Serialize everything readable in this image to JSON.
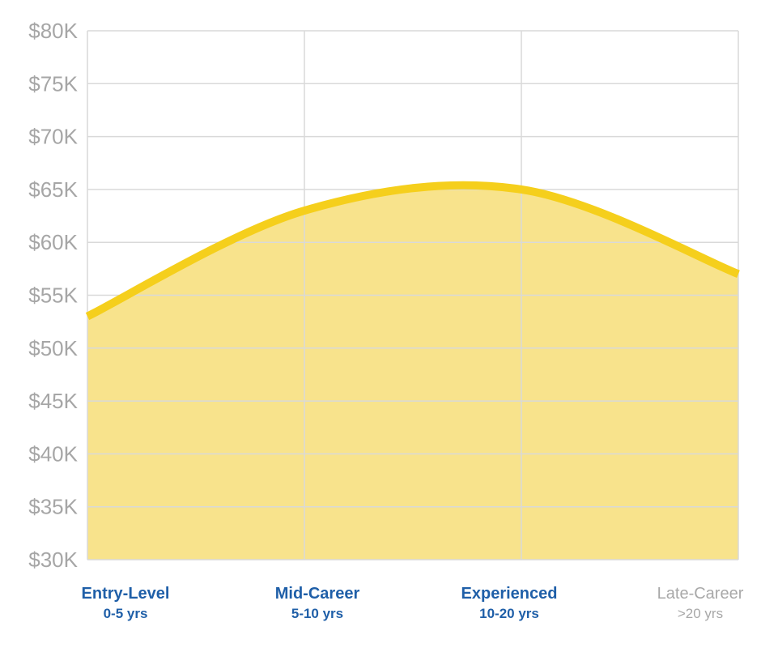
{
  "chart_data": {
    "type": "area",
    "categories": [
      {
        "label": "Entry-Level",
        "sublabel": "0-5 yrs"
      },
      {
        "label": "Mid-Career",
        "sublabel": "5-10 yrs"
      },
      {
        "label": "Experienced",
        "sublabel": "10-20 yrs"
      },
      {
        "label": "Late-Career",
        "sublabel": ">20 yrs"
      }
    ],
    "values": [
      53000,
      63000,
      65000,
      57000
    ],
    "yticks": [
      "$80K",
      "$75K",
      "$70K",
      "$65K",
      "$60K",
      "$55K",
      "$50K",
      "$45K",
      "$40K",
      "$35K",
      "$30K"
    ],
    "ylim": [
      30000,
      80000
    ],
    "grid": true,
    "colors": {
      "line": "#f5cf1c",
      "fill": "#f8e38c",
      "grid": "#d9d9d9",
      "label": "#1f5fa8",
      "muted_label": "#a8a8a8"
    }
  }
}
